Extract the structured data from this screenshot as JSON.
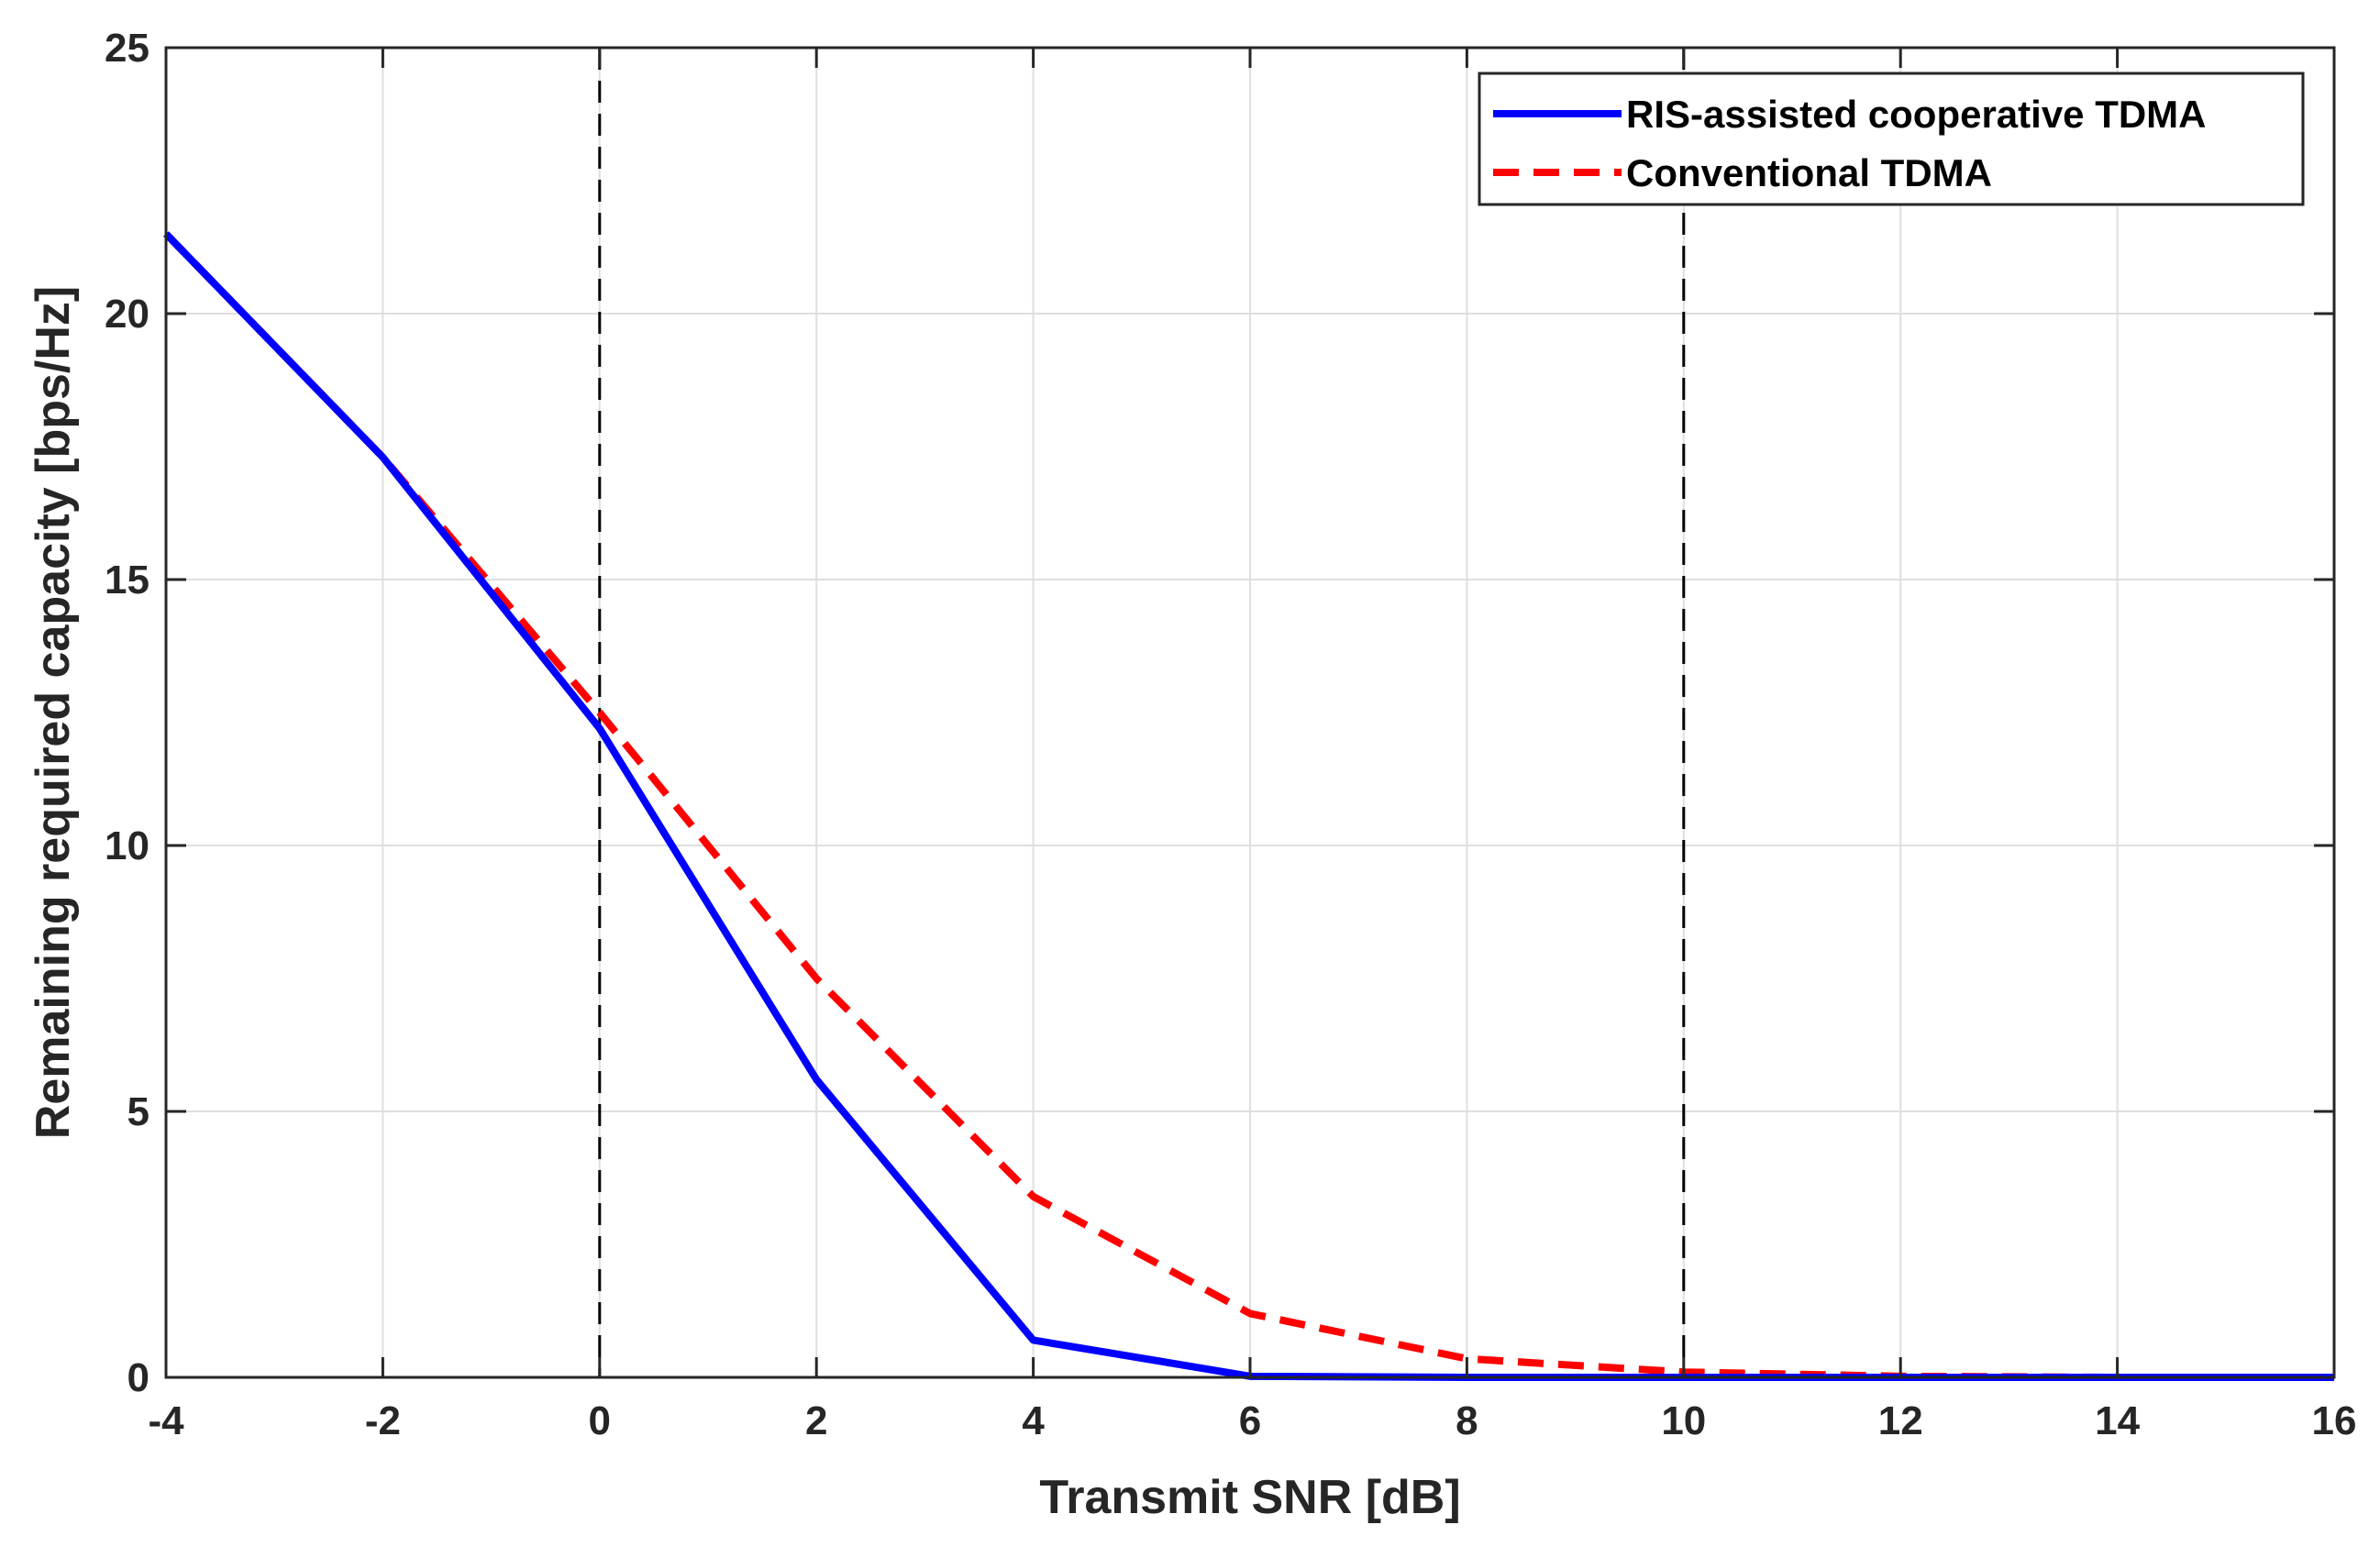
{
  "chart_data": {
    "type": "line",
    "title": "",
    "xlabel": "Transmit SNR [dB]",
    "ylabel": "Remaining required capacity [bps/Hz]",
    "xlim": [
      -4,
      16
    ],
    "ylim": [
      0,
      25
    ],
    "xticks": [
      -4,
      -2,
      0,
      2,
      4,
      6,
      8,
      10,
      12,
      14,
      16
    ],
    "yticks": [
      0,
      5,
      10,
      15,
      20,
      25
    ],
    "xtick_labels": [
      "-4",
      "-2",
      "0",
      "2",
      "4",
      "6",
      "8",
      "10",
      "12",
      "14",
      "16"
    ],
    "ytick_labels": [
      "0",
      "5",
      "10",
      "15",
      "20",
      "25"
    ],
    "grid": true,
    "legend_position": "top-right",
    "vertical_lines": [
      0,
      10
    ],
    "series": [
      {
        "name": "RIS-assisted cooperative TDMA",
        "color": "#0000ff",
        "style": "solid",
        "x": [
          -4,
          -2,
          0,
          2,
          4,
          6,
          8,
          10,
          12,
          14,
          16
        ],
        "values": [
          21.5,
          17.3,
          12.2,
          5.6,
          0.7,
          0.02,
          0.0,
          0.0,
          0.0,
          0.0,
          0.0
        ]
      },
      {
        "name": "Conventional TDMA",
        "color": "#ff0000",
        "style": "dashed",
        "x": [
          -4,
          -2,
          0,
          2,
          4,
          6,
          8,
          10,
          12,
          14,
          16
        ],
        "values": [
          21.5,
          17.3,
          12.5,
          7.5,
          3.4,
          1.2,
          0.35,
          0.1,
          0.02,
          0.0,
          0.0
        ]
      }
    ]
  }
}
